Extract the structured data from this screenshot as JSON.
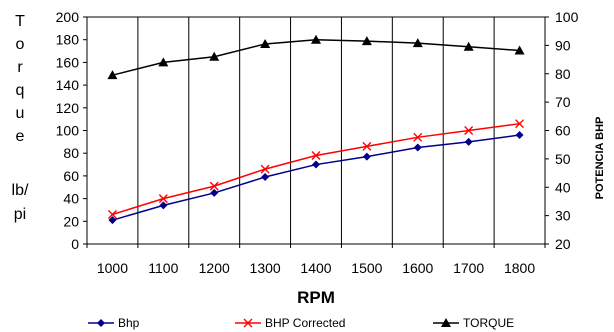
{
  "chart_data": {
    "type": "line",
    "x": [
      1000,
      1100,
      1200,
      1300,
      1400,
      1500,
      1600,
      1700,
      1800
    ],
    "xlabel": "RPM",
    "ylabel_chars": [
      "T",
      "o",
      "r",
      "q",
      "u",
      "e"
    ],
    "ylabel_units": [
      "lb/",
      "pi"
    ],
    "ylabel2": "POTENCIA BHP",
    "ylim": [
      0,
      200
    ],
    "ylim2": [
      20,
      100
    ],
    "yticks": [
      0,
      20,
      40,
      60,
      80,
      100,
      120,
      140,
      160,
      180,
      200
    ],
    "yticks2": [
      20,
      30,
      40,
      50,
      60,
      70,
      80,
      90,
      100
    ],
    "grid": "vertical",
    "legend_position": "bottom",
    "series": [
      {
        "name": "Bhp",
        "axis": "left",
        "color": "#00008B",
        "marker": "diamond",
        "values": [
          21,
          34,
          45,
          59,
          70,
          77,
          85,
          90,
          96
        ]
      },
      {
        "name": "BHP Corrected",
        "axis": "left",
        "color": "#FF0000",
        "marker": "x",
        "values": [
          26,
          40,
          51,
          66,
          78,
          86,
          94,
          100,
          106
        ]
      },
      {
        "name": "TORQUE",
        "axis": "right",
        "color": "#000000",
        "marker": "triangle",
        "values": [
          79.5,
          84,
          86,
          90.5,
          92,
          91.5,
          90.8,
          89.5,
          88.2
        ]
      }
    ]
  }
}
